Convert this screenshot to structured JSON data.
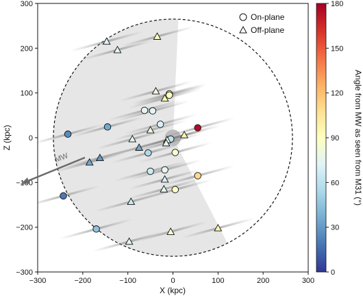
{
  "chart_data": {
    "type": "scatter",
    "xlabel": "X (kpc)",
    "ylabel": "Z (kpc)",
    "xlim": [
      -300,
      300
    ],
    "ylim": [
      -300,
      300
    ],
    "x_ticks": [
      -300,
      -200,
      -100,
      0,
      100,
      200,
      300
    ],
    "y_ticks": [
      -300,
      -200,
      -100,
      0,
      100,
      200,
      300
    ],
    "grid": false,
    "legend_position": "top-right",
    "legend": [
      {
        "marker": "circle",
        "label": "On-plane"
      },
      {
        "marker": "triangle",
        "label": "Off-plane"
      }
    ],
    "colorbar": {
      "label": "Angle from MW as seen from M31 (°)",
      "range": [
        0,
        180
      ],
      "ticks": [
        0,
        30,
        60,
        90,
        120,
        150,
        180
      ],
      "colormap": "RdYlBu_r"
    },
    "annotation": {
      "text": "MW"
    },
    "colors": {
      "shaded_region": "#e6e6e6",
      "center_disc": "#bdbdbd",
      "arrow": "#6b6b6b"
    },
    "on_plane": [
      {
        "x": -8,
        "y": 98,
        "angle": 95
      },
      {
        "x": -8,
        "y": 95,
        "angle": 90
      },
      {
        "x": -63,
        "y": 61,
        "angle": 75
      },
      {
        "x": -45,
        "y": 60,
        "angle": 73
      },
      {
        "x": -28,
        "y": 30,
        "angle": 70
      },
      {
        "x": -5,
        "y": -3,
        "angle": 60
      },
      {
        "x": 55,
        "y": 22,
        "angle": 175
      },
      {
        "x": -233,
        "y": 8,
        "angle": 25
      },
      {
        "x": -145,
        "y": 24,
        "angle": 35
      },
      {
        "x": -55,
        "y": -34,
        "angle": 55
      },
      {
        "x": -50,
        "y": -75,
        "angle": 65
      },
      {
        "x": -18,
        "y": -72,
        "angle": 75
      },
      {
        "x": 5,
        "y": -33,
        "angle": 85
      },
      {
        "x": 5,
        "y": -116,
        "angle": 88
      },
      {
        "x": 55,
        "y": -85,
        "angle": 110
      },
      {
        "x": -243,
        "y": -130,
        "angle": 20
      },
      {
        "x": -170,
        "y": -204,
        "angle": 45
      }
    ],
    "off_plane": [
      {
        "x": -147,
        "y": 215,
        "angle": 70
      },
      {
        "x": -123,
        "y": 196,
        "angle": 75
      },
      {
        "x": -35,
        "y": 226,
        "angle": 90
      },
      {
        "x": -38,
        "y": 104,
        "angle": 80
      },
      {
        "x": -18,
        "y": 88,
        "angle": 92
      },
      {
        "x": -50,
        "y": 17,
        "angle": 78
      },
      {
        "x": -90,
        "y": -3,
        "angle": 75
      },
      {
        "x": -75,
        "y": -22,
        "angle": 35
      },
      {
        "x": -13,
        "y": -5,
        "angle": 80
      },
      {
        "x": -15,
        "y": -12,
        "angle": 75
      },
      {
        "x": 25,
        "y": 6,
        "angle": 95
      },
      {
        "x": -185,
        "y": -55,
        "angle": 35
      },
      {
        "x": -162,
        "y": -45,
        "angle": 30
      },
      {
        "x": -18,
        "y": -93,
        "angle": 70
      },
      {
        "x": -20,
        "y": -115,
        "angle": 75
      },
      {
        "x": -93,
        "y": -143,
        "angle": 65
      },
      {
        "x": -97,
        "y": -232,
        "angle": 75
      },
      {
        "x": -5,
        "y": -210,
        "angle": 85
      },
      {
        "x": 100,
        "y": -202,
        "angle": 95
      }
    ]
  }
}
